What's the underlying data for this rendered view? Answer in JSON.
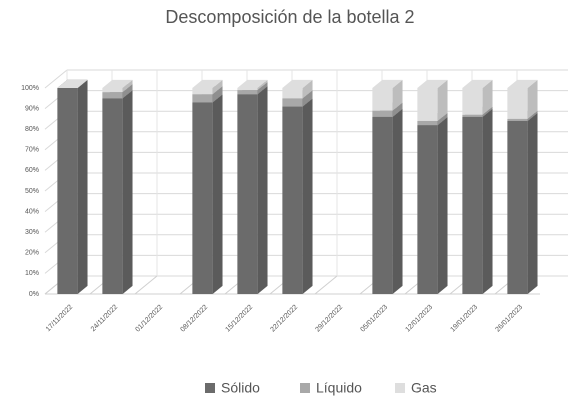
{
  "chart_data": {
    "type": "bar3d_stacked",
    "title": "Descomposición de la botella 2",
    "categories": [
      "17/11/2022",
      "24/11/2022",
      "01/12/2022",
      "08/12/2022",
      "15/12/2022",
      "22/12/2022",
      "29/12/2022",
      "05/01/2023",
      "12/01/2023",
      "19/01/2023",
      "26/01/2023"
    ],
    "series": [
      {
        "name": "Sólido",
        "color": "#6b6b6b",
        "values": [
          100,
          95,
          null,
          93,
          97,
          91,
          null,
          86,
          82,
          86,
          84
        ]
      },
      {
        "name": "Líquido",
        "color": "#a8a8a8",
        "values": [
          0,
          3,
          null,
          4,
          2,
          4,
          null,
          3,
          2,
          1,
          1
        ]
      },
      {
        "name": "Gas",
        "color": "#dedede",
        "values": [
          0,
          2,
          null,
          3,
          1,
          5,
          null,
          11,
          16,
          13,
          15
        ]
      }
    ],
    "ylim": [
      0,
      100
    ],
    "yticks": [
      {
        "value": 0,
        "label": "0%"
      },
      {
        "value": 10,
        "label": "10%"
      },
      {
        "value": 20,
        "label": "20%"
      },
      {
        "value": 30,
        "label": "30%"
      },
      {
        "value": 40,
        "label": "40%"
      },
      {
        "value": 50,
        "label": "50%"
      },
      {
        "value": 60,
        "label": "60%"
      },
      {
        "value": 70,
        "label": "70%"
      },
      {
        "value": 80,
        "label": "80%"
      },
      {
        "value": 90,
        "label": "90%"
      },
      {
        "value": 100,
        "label": "100%"
      }
    ],
    "grid": true,
    "legend": "bottom"
  }
}
